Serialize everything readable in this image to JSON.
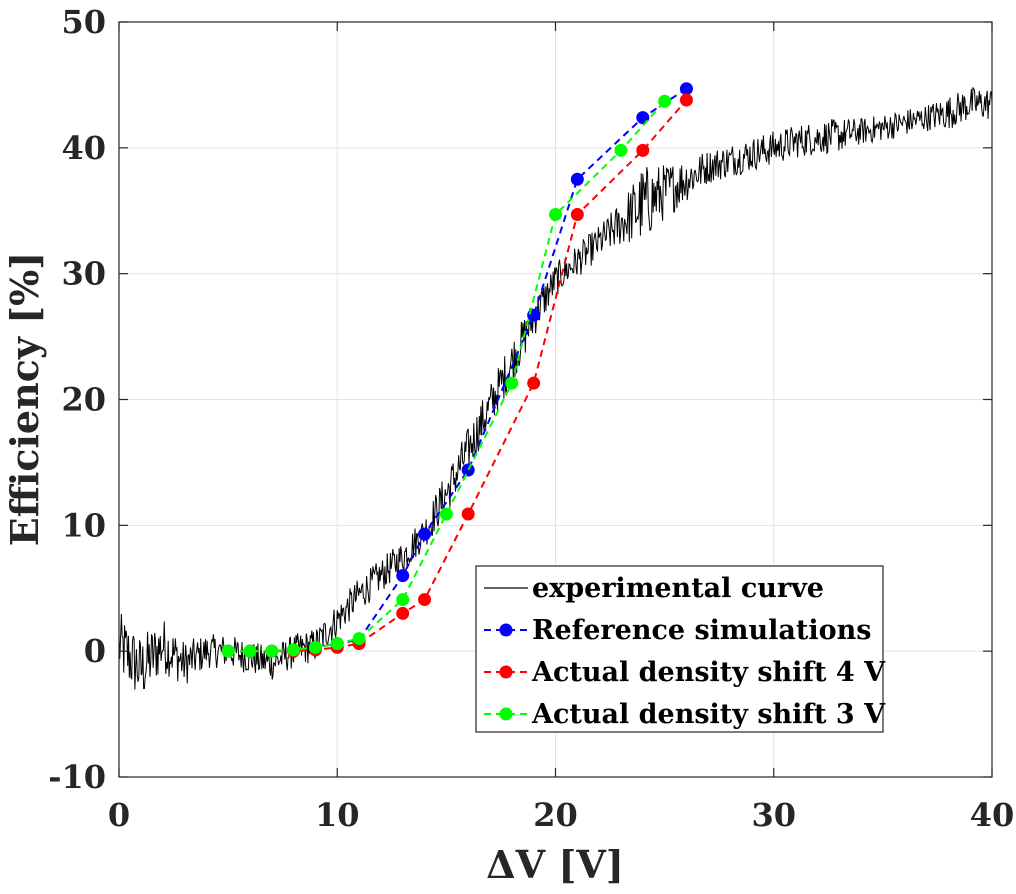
{
  "chart_data": {
    "type": "line",
    "title": "",
    "xlabel": "ΔV [V]",
    "ylabel": "Efficiency [%]",
    "xlim": [
      0,
      40
    ],
    "ylim": [
      -10,
      50
    ],
    "xticks": [
      0,
      10,
      20,
      30,
      40
    ],
    "yticks": [
      -10,
      0,
      10,
      20,
      30,
      40,
      50
    ],
    "xtick_labels": [
      "0",
      "10",
      "20",
      "30",
      "40"
    ],
    "ytick_labels": [
      "-10",
      "0",
      "10",
      "20",
      "30",
      "40",
      "50"
    ],
    "grid": true,
    "legend_position": "center-right",
    "experimental": {
      "name": "experimental curve",
      "color": "#000000",
      "x": [
        0,
        1,
        2,
        3,
        4,
        5,
        6,
        7,
        8,
        9,
        10,
        11,
        12,
        13,
        14,
        15,
        16,
        17,
        18,
        19,
        20,
        21,
        22,
        23,
        24,
        25,
        26,
        27,
        28,
        29,
        30,
        31,
        32,
        33,
        34,
        35,
        36,
        37,
        38,
        39,
        40
      ],
      "y": [
        0.5,
        -1.5,
        0.5,
        -1.0,
        0,
        0,
        -0.5,
        -1.0,
        0,
        0.5,
        2.5,
        4.5,
        6.0,
        7.5,
        9.5,
        12.5,
        16.0,
        19.5,
        23.0,
        26.5,
        29.5,
        31.0,
        32.5,
        34.0,
        35.5,
        36.5,
        37.5,
        38.5,
        39.0,
        39.5,
        40.0,
        40.5,
        40.8,
        41.0,
        41.3,
        41.6,
        42.0,
        42.4,
        42.8,
        43.5,
        43.5
      ],
      "noise": [
        3.0,
        3.0,
        2.5,
        2.0,
        1.5,
        1.5,
        1.5,
        1.5,
        1.5,
        1.5,
        1.5,
        1.5,
        1.5,
        1.5,
        1.5,
        2.0,
        2.0,
        2.0,
        2.0,
        1.8,
        1.5,
        1.5,
        1.5,
        2.0,
        3.5,
        2.5,
        2.0,
        1.5,
        1.5,
        1.5,
        1.5,
        1.5,
        1.5,
        1.5,
        1.2,
        1.2,
        1.2,
        1.2,
        1.5,
        1.5,
        1.5
      ]
    },
    "series": [
      {
        "name": "Reference simulations",
        "color": "#0000ff",
        "x": [
          5,
          6,
          7,
          8,
          9,
          10,
          11,
          13,
          14,
          16,
          19,
          21,
          24,
          26
        ],
        "y": [
          0,
          0,
          0,
          0.1,
          0.3,
          0.6,
          0.9,
          6.0,
          9.3,
          14.4,
          26.7,
          37.5,
          42.4,
          44.7
        ]
      },
      {
        "name": "Actual density shift 4 V",
        "color": "#ff0000",
        "x": [
          5,
          6,
          7,
          8,
          9,
          10,
          11,
          13,
          14,
          16,
          19,
          21,
          24,
          26
        ],
        "y": [
          0,
          0,
          0,
          0,
          0.1,
          0.3,
          0.6,
          3.0,
          4.1,
          10.9,
          21.3,
          34.7,
          39.8,
          43.8
        ]
      },
      {
        "name": "Actual density shift 3 V",
        "color": "#00ff00",
        "x": [
          5,
          6,
          7,
          8,
          9,
          10,
          11,
          13,
          15,
          18,
          20,
          23,
          25
        ],
        "y": [
          0,
          0,
          0,
          0.1,
          0.3,
          0.6,
          1.0,
          4.1,
          10.9,
          21.3,
          34.7,
          39.8,
          43.7
        ]
      }
    ]
  }
}
